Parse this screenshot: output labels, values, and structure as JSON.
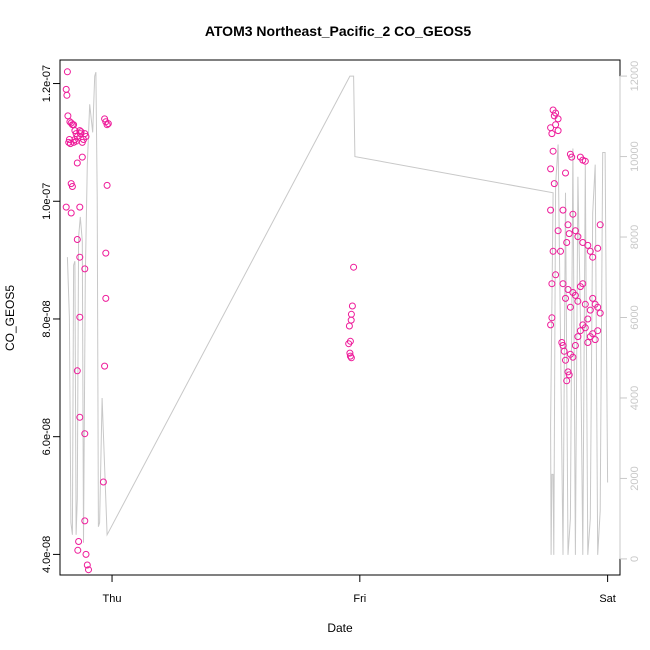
{
  "chart_data": {
    "type": "scatter",
    "title": "ATOM3 Northeast_Pacific_2 CO_GEOS5",
    "xlabel": "Date",
    "ylabel": "CO_GEOS5",
    "x_ticks": [
      "Thu",
      "Fri",
      "Sat"
    ],
    "x_range_days": [
      -0.21,
      2.05
    ],
    "y_ticks": [
      "4.0e-08",
      "6.0e-08",
      "8.0e-08",
      "1.0e-07",
      "1.2e-07"
    ],
    "y_tick_values": [
      4e-08,
      6e-08,
      8e-08,
      1e-07,
      1.2e-07
    ],
    "ylim": [
      3.65e-08,
      1.24e-07
    ],
    "y2_ticks": [
      "0",
      "2000",
      "4000",
      "6000",
      "8000",
      "10000",
      "12000"
    ],
    "y2_tick_values": [
      0,
      2000,
      4000,
      6000,
      8000,
      10000,
      12000
    ],
    "y2lim": [
      -400,
      12400
    ],
    "grid": false,
    "colors": {
      "points": "#ee1b9a",
      "line": "#c8c8c8"
    },
    "series": [
      {
        "type": "scatter",
        "axis": "left",
        "points": [
          [
            -0.18,
            1.22e-07
          ],
          [
            -0.185,
            1.19e-07
          ],
          [
            -0.182,
            1.18e-07
          ],
          [
            -0.178,
            1.145e-07
          ],
          [
            -0.17,
            1.135e-07
          ],
          [
            -0.165,
            1.133e-07
          ],
          [
            -0.16,
            1.13e-07
          ],
          [
            -0.155,
            1.13e-07
          ],
          [
            -0.15,
            1.12e-07
          ],
          [
            -0.145,
            1.115e-07
          ],
          [
            -0.14,
            1.11e-07
          ],
          [
            -0.175,
            1.1e-07
          ],
          [
            -0.172,
            1.105e-07
          ],
          [
            -0.168,
            1.098e-07
          ],
          [
            -0.155,
            1.1e-07
          ],
          [
            -0.15,
            1.105e-07
          ],
          [
            -0.145,
            1.102e-07
          ],
          [
            -0.13,
            1.12e-07
          ],
          [
            -0.128,
            1.115e-07
          ],
          [
            -0.125,
            1.118e-07
          ],
          [
            -0.12,
            1.1e-07
          ],
          [
            -0.115,
            1.105e-07
          ],
          [
            -0.11,
            1.115e-07
          ],
          [
            -0.105,
            1.11e-07
          ],
          [
            -0.165,
            1.03e-07
          ],
          [
            -0.16,
            1.025e-07
          ],
          [
            -0.14,
            1.065e-07
          ],
          [
            -0.13,
            9.9e-08
          ],
          [
            -0.185,
            9.9e-08
          ],
          [
            -0.165,
            9.8e-08
          ],
          [
            -0.14,
            9.35e-08
          ],
          [
            -0.13,
            9.05e-08
          ],
          [
            -0.11,
            8.85e-08
          ],
          [
            -0.13,
            8.03e-08
          ],
          [
            -0.14,
            7.12e-08
          ],
          [
            -0.13,
            6.33e-08
          ],
          [
            -0.12,
            1.075e-07
          ],
          [
            -0.11,
            6.05e-08
          ],
          [
            -0.135,
            4.22e-08
          ],
          [
            -0.138,
            4.07e-08
          ],
          [
            -0.11,
            4.57e-08
          ],
          [
            -0.105,
            4e-08
          ],
          [
            -0.1,
            3.82e-08
          ],
          [
            -0.095,
            3.74e-08
          ],
          [
            -0.03,
            1.14e-07
          ],
          [
            -0.025,
            1.135e-07
          ],
          [
            -0.02,
            1.13e-07
          ],
          [
            -0.015,
            1.132e-07
          ],
          [
            -0.02,
            1.027e-07
          ],
          [
            -0.025,
            9.12e-08
          ],
          [
            -0.025,
            8.35e-08
          ],
          [
            -0.03,
            7.2e-08
          ],
          [
            -0.035,
            5.23e-08
          ],
          [
            0.975,
            8.88e-08
          ],
          [
            0.97,
            8.22e-08
          ],
          [
            0.966,
            8.08e-08
          ],
          [
            0.965,
            7.98e-08
          ],
          [
            0.958,
            7.88e-08
          ],
          [
            0.962,
            7.62e-08
          ],
          [
            0.955,
            7.58e-08
          ],
          [
            0.96,
            7.42e-08
          ],
          [
            0.962,
            7.37e-08
          ],
          [
            0.966,
            7.34e-08
          ],
          [
            1.77,
            1.125e-07
          ],
          [
            1.78,
            1.155e-07
          ],
          [
            1.79,
            1.15e-07
          ],
          [
            1.785,
            1.145e-07
          ],
          [
            1.8,
            1.14e-07
          ],
          [
            1.79,
            1.13e-07
          ],
          [
            1.775,
            1.115e-07
          ],
          [
            1.8,
            1.12e-07
          ],
          [
            1.78,
            1.085e-07
          ],
          [
            1.77,
            1.055e-07
          ],
          [
            1.785,
            1.03e-07
          ],
          [
            1.77,
            9.85e-08
          ],
          [
            1.8,
            9.5e-08
          ],
          [
            1.78,
            9.15e-08
          ],
          [
            1.81,
            9.15e-08
          ],
          [
            1.82,
            8.6e-08
          ],
          [
            1.79,
            8.75e-08
          ],
          [
            1.775,
            8.6e-08
          ],
          [
            1.775,
            8.02e-08
          ],
          [
            1.77,
            7.9e-08
          ],
          [
            1.83,
            1.048e-07
          ],
          [
            1.85,
            1.08e-07
          ],
          [
            1.855,
            1.075e-07
          ],
          [
            1.89,
            1.075e-07
          ],
          [
            1.9,
            1.07e-07
          ],
          [
            1.91,
            1.068e-07
          ],
          [
            1.84,
            9.6e-08
          ],
          [
            1.845,
            9.45e-08
          ],
          [
            1.82,
            9.85e-08
          ],
          [
            1.835,
            9.3e-08
          ],
          [
            1.86,
            9.78e-08
          ],
          [
            1.87,
            9.5e-08
          ],
          [
            1.88,
            9.4e-08
          ],
          [
            1.9,
            9.3e-08
          ],
          [
            1.92,
            9.25e-08
          ],
          [
            1.93,
            9.15e-08
          ],
          [
            1.94,
            9.05e-08
          ],
          [
            1.96,
            9.2e-08
          ],
          [
            1.97,
            9.6e-08
          ],
          [
            1.83,
            8.35e-08
          ],
          [
            1.84,
            8.5e-08
          ],
          [
            1.85,
            8.2e-08
          ],
          [
            1.86,
            8.45e-08
          ],
          [
            1.87,
            8.4e-08
          ],
          [
            1.88,
            8.3e-08
          ],
          [
            1.89,
            8.55e-08
          ],
          [
            1.9,
            8.6e-08
          ],
          [
            1.91,
            8.25e-08
          ],
          [
            1.92,
            8e-08
          ],
          [
            1.93,
            8.15e-08
          ],
          [
            1.94,
            8.35e-08
          ],
          [
            1.95,
            8.25e-08
          ],
          [
            1.96,
            8.2e-08
          ],
          [
            1.97,
            8.1e-08
          ],
          [
            1.82,
            7.55e-08
          ],
          [
            1.83,
            7.3e-08
          ],
          [
            1.84,
            7.1e-08
          ],
          [
            1.85,
            7.4e-08
          ],
          [
            1.86,
            7.35e-08
          ],
          [
            1.87,
            7.55e-08
          ],
          [
            1.88,
            7.7e-08
          ],
          [
            1.89,
            7.8e-08
          ],
          [
            1.9,
            7.9e-08
          ],
          [
            1.91,
            7.85e-08
          ],
          [
            1.92,
            7.6e-08
          ],
          [
            1.93,
            7.7e-08
          ],
          [
            1.94,
            7.75e-08
          ],
          [
            1.95,
            7.65e-08
          ],
          [
            1.96,
            7.8e-08
          ],
          [
            1.835,
            6.95e-08
          ],
          [
            1.845,
            7.05e-08
          ],
          [
            1.825,
            7.45e-08
          ],
          [
            1.815,
            7.6e-08
          ]
        ]
      },
      {
        "type": "line",
        "axis": "right",
        "points": [
          [
            -0.18,
            7500
          ],
          [
            -0.172,
            6000
          ],
          [
            -0.166,
            900
          ],
          [
            -0.16,
            600
          ],
          [
            -0.155,
            7300
          ],
          [
            -0.15,
            7400
          ],
          [
            -0.145,
            600
          ],
          [
            -0.14,
            1500
          ],
          [
            -0.135,
            8000
          ],
          [
            -0.128,
            8500
          ],
          [
            -0.12,
            7900
          ],
          [
            -0.115,
            400
          ],
          [
            -0.108,
            7000
          ],
          [
            -0.1,
            9800
          ],
          [
            -0.09,
            11300
          ],
          [
            -0.078,
            10600
          ],
          [
            -0.07,
            12000
          ],
          [
            -0.065,
            12100
          ],
          [
            -0.06,
            9000
          ],
          [
            -0.055,
            800
          ],
          [
            -0.05,
            900
          ],
          [
            -0.04,
            4000
          ],
          [
            -0.02,
            600
          ],
          [
            0.96,
            12000
          ],
          [
            0.975,
            12000
          ],
          [
            0.98,
            10000
          ],
          [
            1.78,
            9100
          ],
          [
            1.77,
            3300
          ],
          [
            1.772,
            100
          ],
          [
            1.775,
            2100
          ],
          [
            1.78,
            2100
          ],
          [
            1.783,
            100
          ],
          [
            1.79,
            9300
          ],
          [
            1.8,
            10300
          ],
          [
            1.81,
            5500
          ],
          [
            1.82,
            100
          ],
          [
            1.83,
            9100
          ],
          [
            1.84,
            100
          ],
          [
            1.85,
            1000
          ],
          [
            1.86,
            10200
          ],
          [
            1.87,
            100
          ],
          [
            1.88,
            9500
          ],
          [
            1.89,
            6000
          ],
          [
            1.9,
            100
          ],
          [
            1.91,
            9800
          ],
          [
            1.92,
            100
          ],
          [
            1.93,
            1000
          ],
          [
            1.94,
            8600
          ],
          [
            1.95,
            9800
          ],
          [
            1.96,
            100
          ],
          [
            1.97,
            1200
          ],
          [
            1.98,
            10100
          ],
          [
            1.99,
            10100
          ],
          [
            2.0,
            1900
          ]
        ]
      }
    ]
  }
}
